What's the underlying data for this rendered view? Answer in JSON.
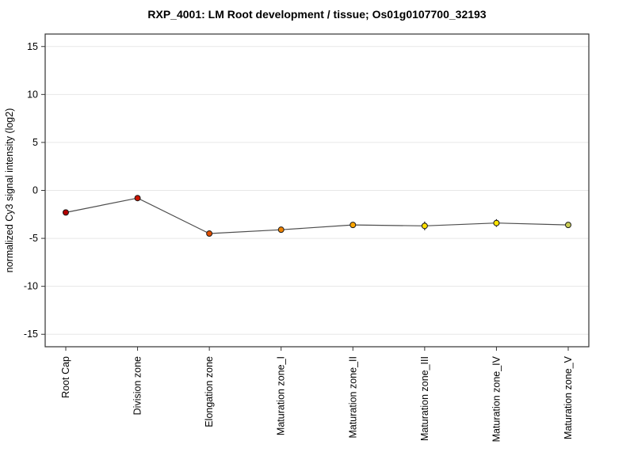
{
  "chart_data": {
    "type": "line",
    "title": "RXP_4001: LM Root development / tissue; Os01g0107700_32193",
    "ylabel": "normalized Cy3 signal intensity (log2)",
    "xlabel": "",
    "categories": [
      "Root Cap",
      "Division zone",
      "Elongation zone",
      "Maturation zone_I",
      "Maturation zone_II",
      "Maturation zone_III",
      "Maturation zone_IV",
      "Maturation zone_V"
    ],
    "values": [
      -2.3,
      -0.8,
      -4.5,
      -4.1,
      -3.6,
      -3.7,
      -3.4,
      -3.6
    ],
    "errors": [
      0.15,
      0.3,
      0.2,
      0.3,
      0.25,
      0.45,
      0.4,
      0.3
    ],
    "point_colors": [
      "#b30000",
      "#cc1400",
      "#e04e00",
      "#ee8200",
      "#ffa600",
      "#ffdf00",
      "#ffe400",
      "#c9cc55"
    ],
    "point_edge_color": "#1a1a1a",
    "line_color": "#4d4d4d",
    "error_bar_color": "#1a1a1a",
    "grid_color": "#e7e7e7",
    "frame_color": "#333333",
    "tick_color": "#333333",
    "text_color": "#000000",
    "background": "#ffffff",
    "ylim": [
      -16.3,
      16.3
    ],
    "yticks": [
      -15,
      -10,
      -5,
      0,
      5,
      10,
      15
    ],
    "grid": true,
    "legend": "none"
  }
}
